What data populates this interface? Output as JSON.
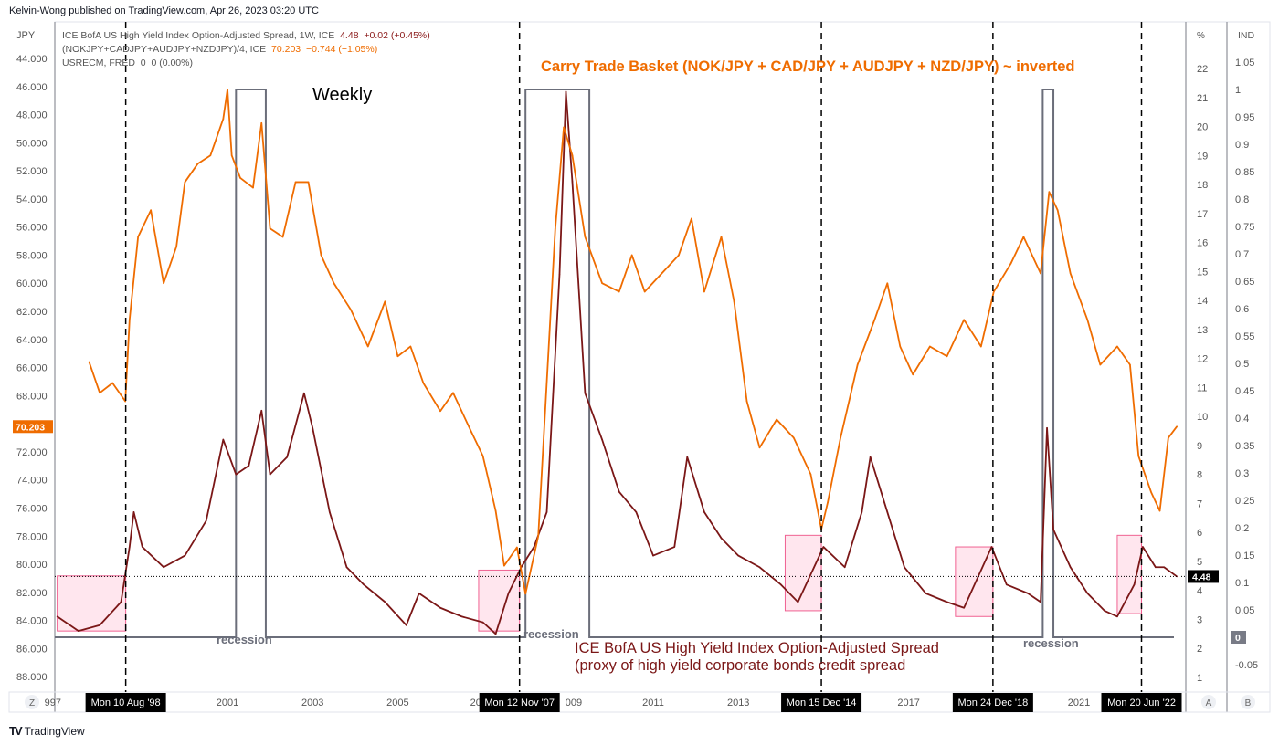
{
  "header": {
    "published": "Kelvin-Wong published on TradingView.com, Apr 26, 2023 03:20 UTC"
  },
  "legend": [
    {
      "name": "ICE BofA US High Yield Index Option-Adjusted Spread, 1W, ICE",
      "value": "4.48",
      "change": "+0.02 (+0.45%)"
    },
    {
      "name": "(NOKJPY+CADJPY+AUDJPY+NZDJPY)/4, ICE",
      "value": "70.203",
      "change": "−0.744 (−1.05%)"
    },
    {
      "name": "USRECM, FRED",
      "value": "0",
      "change": "0 (0.00%)"
    }
  ],
  "footer": {
    "brand": "TradingView",
    "logo": "TV"
  },
  "colors": {
    "carry": "#ef6c00",
    "spread": "#7b1717",
    "recession": "#6b6e7a",
    "box_fill": "#ffd6e2",
    "box_stroke": "#f06292"
  },
  "chart_data": {
    "type": "line",
    "title": "Weekly",
    "left_axis": {
      "unit": "JPY",
      "inverted": true,
      "range": [
        44,
        88
      ],
      "ticks": [
        "44.000",
        "46.000",
        "48.000",
        "50.000",
        "52.000",
        "54.000",
        "56.000",
        "58.000",
        "60.000",
        "62.000",
        "64.000",
        "66.000",
        "68.000",
        "72.000",
        "74.000",
        "76.000",
        "78.000",
        "80.000",
        "82.000",
        "84.000",
        "86.000",
        "88.000"
      ],
      "last_label": "70.203"
    },
    "pct_axis": {
      "unit": "%",
      "range": [
        1,
        22
      ],
      "ticks": [
        "22",
        "21",
        "20",
        "19",
        "18",
        "17",
        "16",
        "15",
        "14",
        "13",
        "12",
        "11",
        "10",
        "9",
        "8",
        "7",
        "6",
        "5",
        "4",
        "3",
        "2",
        "1"
      ],
      "last_label": "4.48",
      "button": "A"
    },
    "ind_axis": {
      "unit": "IND",
      "range": [
        -0.05,
        1.05
      ],
      "ticks": [
        "1.05",
        "1",
        "0.95",
        "0.9",
        "0.85",
        "0.8",
        "0.75",
        "0.7",
        "0.65",
        "0.6",
        "0.55",
        "0.5",
        "0.45",
        "0.4",
        "0.35",
        "0.3",
        "0.25",
        "0.2",
        "0.15",
        "0.1",
        "0.05",
        "-0.05"
      ],
      "last_label": "0",
      "button": "B"
    },
    "x_axis": {
      "range": [
        1996.75,
        2023.6
      ],
      "ticks": [
        {
          "year": 1997,
          "label": "997"
        },
        {
          "year": 2001,
          "label": "2001"
        },
        {
          "year": 2003,
          "label": "2003"
        },
        {
          "year": 2005,
          "label": "2005"
        },
        {
          "year": 2007,
          "label": "20"
        },
        {
          "year": 2009,
          "label": "009"
        },
        {
          "year": 2011,
          "label": "2011"
        },
        {
          "year": 2013,
          "label": "2013"
        },
        {
          "year": 2017,
          "label": "2017"
        },
        {
          "year": 2021,
          "label": "2021"
        }
      ],
      "button": "Z"
    },
    "events": [
      {
        "year": 1998.61,
        "label": "Mon 10 Aug '98"
      },
      {
        "year": 2007.86,
        "label": "Mon 12 Nov '07"
      },
      {
        "year": 2014.95,
        "label": "Mon 15 Dec '14"
      },
      {
        "year": 2018.98,
        "label": "Mon 24 Dec '18"
      },
      {
        "year": 2022.47,
        "label": "Mon 20 Jun '22"
      }
    ],
    "series": [
      {
        "name": "(NOKJPY+CADJPY+AUDJPY+NZDJPY)/4",
        "axis": "left",
        "x": [
          1997.75,
          1998.0,
          1998.3,
          1998.6,
          1998.7,
          1998.9,
          1999.2,
          1999.5,
          1999.8,
          2000.0,
          2000.3,
          2000.6,
          2000.9,
          2001.0,
          2001.1,
          2001.3,
          2001.6,
          2001.8,
          2002.0,
          2002.3,
          2002.6,
          2002.9,
          2003.2,
          2003.5,
          2003.9,
          2004.3,
          2004.7,
          2005.0,
          2005.3,
          2005.6,
          2006.0,
          2006.3,
          2006.7,
          2007.0,
          2007.3,
          2007.5,
          2007.8,
          2008.0,
          2008.3,
          2008.7,
          2008.9,
          2009.1,
          2009.4,
          2009.8,
          2010.2,
          2010.5,
          2010.8,
          2011.2,
          2011.6,
          2011.9,
          2012.2,
          2012.6,
          2012.9,
          2013.2,
          2013.5,
          2013.9,
          2014.3,
          2014.7,
          2014.95,
          2015.1,
          2015.4,
          2015.8,
          2016.2,
          2016.5,
          2016.8,
          2017.1,
          2017.5,
          2017.9,
          2018.3,
          2018.7,
          2019.0,
          2019.4,
          2019.7,
          2020.1,
          2020.3,
          2020.5,
          2020.8,
          2021.2,
          2021.5,
          2021.9,
          2022.2,
          2022.4,
          2022.7,
          2022.9,
          2023.1,
          2023.3
        ],
        "values": [
          65.6,
          67.8,
          67.1,
          68.4,
          62.6,
          56.7,
          54.8,
          60.0,
          57.4,
          52.8,
          51.5,
          50.9,
          48.3,
          46.2,
          50.9,
          52.5,
          53.2,
          48.6,
          56.1,
          56.7,
          52.8,
          52.8,
          58.0,
          60.0,
          61.9,
          64.5,
          61.3,
          65.2,
          64.5,
          67.1,
          69.1,
          67.8,
          70.4,
          72.3,
          76.2,
          80.1,
          78.8,
          82.1,
          78.0,
          56.1,
          48.9,
          50.9,
          56.7,
          60.0,
          60.6,
          58.0,
          60.6,
          59.3,
          58.0,
          55.4,
          60.6,
          56.7,
          61.3,
          68.4,
          71.7,
          69.7,
          71.0,
          73.6,
          77.5,
          75.6,
          71.0,
          65.8,
          62.6,
          60.0,
          64.5,
          66.5,
          64.5,
          65.2,
          62.6,
          64.5,
          60.6,
          58.6,
          56.7,
          59.3,
          53.5,
          54.8,
          59.3,
          62.6,
          65.8,
          64.5,
          65.8,
          72.3,
          74.9,
          76.2,
          71.0,
          70.2
        ]
      },
      {
        "name": "ICE BofA US High Yield Index Option-Adjusted Spread",
        "axis": "pct",
        "x": [
          1997.0,
          1997.5,
          1998.0,
          1998.5,
          1998.7,
          1998.8,
          1999.0,
          1999.5,
          2000.0,
          2000.5,
          2000.9,
          2001.2,
          2001.5,
          2001.8,
          2002.0,
          2002.4,
          2002.8,
          2003.0,
          2003.4,
          2003.8,
          2004.2,
          2004.7,
          2005.2,
          2005.5,
          2006.0,
          2006.5,
          2007.0,
          2007.3,
          2007.6,
          2007.9,
          2008.2,
          2008.5,
          2008.8,
          2008.95,
          2009.1,
          2009.4,
          2009.8,
          2010.2,
          2010.6,
          2011.0,
          2011.5,
          2011.8,
          2012.2,
          2012.6,
          2013.0,
          2013.5,
          2014.0,
          2014.4,
          2015.0,
          2015.5,
          2015.9,
          2016.1,
          2016.5,
          2016.9,
          2017.4,
          2017.9,
          2018.3,
          2018.95,
          2019.3,
          2019.8,
          2020.1,
          2020.25,
          2020.4,
          2020.8,
          2021.2,
          2021.6,
          2021.9,
          2022.3,
          2022.5,
          2022.8,
          2023.0,
          2023.3
        ],
        "values": [
          3.1,
          2.6,
          2.8,
          3.6,
          5.5,
          6.7,
          5.5,
          4.8,
          5.2,
          6.4,
          9.2,
          8.0,
          8.3,
          10.2,
          8.0,
          8.6,
          10.8,
          9.6,
          6.7,
          4.8,
          4.2,
          3.6,
          2.8,
          3.9,
          3.4,
          3.1,
          2.9,
          2.5,
          3.9,
          4.8,
          5.5,
          6.7,
          14.9,
          21.2,
          18.1,
          10.8,
          9.2,
          7.4,
          6.7,
          5.2,
          5.5,
          8.6,
          6.7,
          5.8,
          5.2,
          4.8,
          4.2,
          3.6,
          5.5,
          4.8,
          6.7,
          8.6,
          6.7,
          4.8,
          3.9,
          3.6,
          3.4,
          5.5,
          4.2,
          3.9,
          3.6,
          9.6,
          6.1,
          4.8,
          3.9,
          3.3,
          3.1,
          4.2,
          5.5,
          4.8,
          4.8,
          4.48
        ]
      },
      {
        "name": "USRECM",
        "axis": "ind",
        "periods": [
          [
            2001.2,
            2001.9
          ],
          [
            2008.0,
            2009.5
          ],
          [
            2020.15,
            2020.4
          ]
        ]
      }
    ],
    "highlight_boxes": [
      {
        "x": [
          1997.0,
          1998.61
        ],
        "pct": [
          2.6,
          4.5
        ]
      },
      {
        "x": [
          2006.9,
          2007.86
        ],
        "pct": [
          2.6,
          4.7
        ]
      },
      {
        "x": [
          2014.1,
          2014.95
        ],
        "pct": [
          3.3,
          5.9
        ]
      },
      {
        "x": [
          2018.1,
          2018.98
        ],
        "pct": [
          3.1,
          5.5
        ]
      },
      {
        "x": [
          2021.9,
          2022.47
        ],
        "pct": [
          3.2,
          5.9
        ]
      }
    ],
    "annotations": [
      {
        "id": "weekly",
        "text": "Weekly"
      },
      {
        "id": "carry",
        "text": "Carry Trade Basket (NOK/JPY +  CAD/JPY + AUDJPY + NZD/JPY) ~ inverted"
      },
      {
        "id": "rec1",
        "text": "recession"
      },
      {
        "id": "rec2",
        "text": "recession"
      },
      {
        "id": "rec3",
        "text": "recession"
      },
      {
        "id": "hy1",
        "text": "ICE BofA US High Yield Index Option-Adjusted Spread"
      },
      {
        "id": "hy2",
        "text": "(proxy of high yield corporate bonds credit spread"
      }
    ]
  }
}
